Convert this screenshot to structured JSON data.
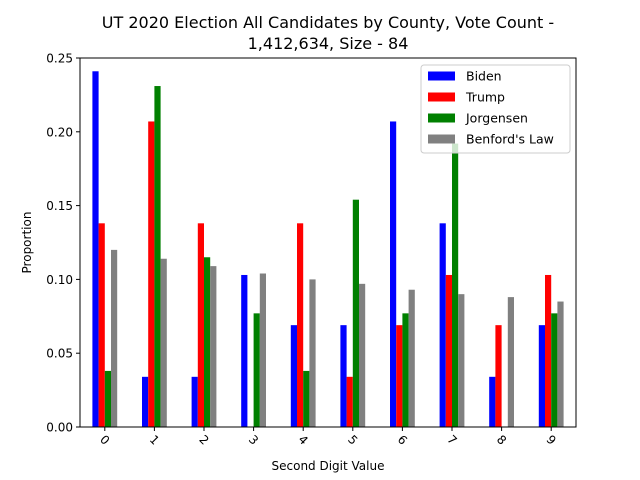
{
  "chart_data": {
    "type": "bar",
    "title_lines": [
      "UT 2020 Election All Candidates by County, Vote Count -",
      "1,412,634, Size - 84"
    ],
    "xlabel": "Second Digit Value",
    "ylabel": "Proportion",
    "categories": [
      "0",
      "1",
      "2",
      "3",
      "4",
      "5",
      "6",
      "7",
      "8",
      "9"
    ],
    "ylim": [
      0,
      0.25
    ],
    "yticks": [
      "0.00",
      "0.05",
      "0.10",
      "0.15",
      "0.20",
      "0.25"
    ],
    "grid": false,
    "legend_position": "top-right",
    "series": [
      {
        "name": "Biden",
        "color": "#0000ff",
        "values": [
          0.241,
          0.034,
          0.034,
          0.103,
          0.069,
          0.069,
          0.207,
          0.138,
          0.034,
          0.069
        ]
      },
      {
        "name": "Trump",
        "color": "#ff0000",
        "values": [
          0.138,
          0.207,
          0.138,
          0.0,
          0.138,
          0.034,
          0.069,
          0.103,
          0.069,
          0.103
        ]
      },
      {
        "name": "Jorgensen",
        "color": "#008000",
        "values": [
          0.038,
          0.231,
          0.115,
          0.077,
          0.038,
          0.154,
          0.077,
          0.192,
          0.0,
          0.077
        ]
      },
      {
        "name": "Benford's Law",
        "color": "#808080",
        "values": [
          0.12,
          0.114,
          0.109,
          0.104,
          0.1,
          0.097,
          0.093,
          0.09,
          0.088,
          0.085
        ]
      }
    ]
  }
}
